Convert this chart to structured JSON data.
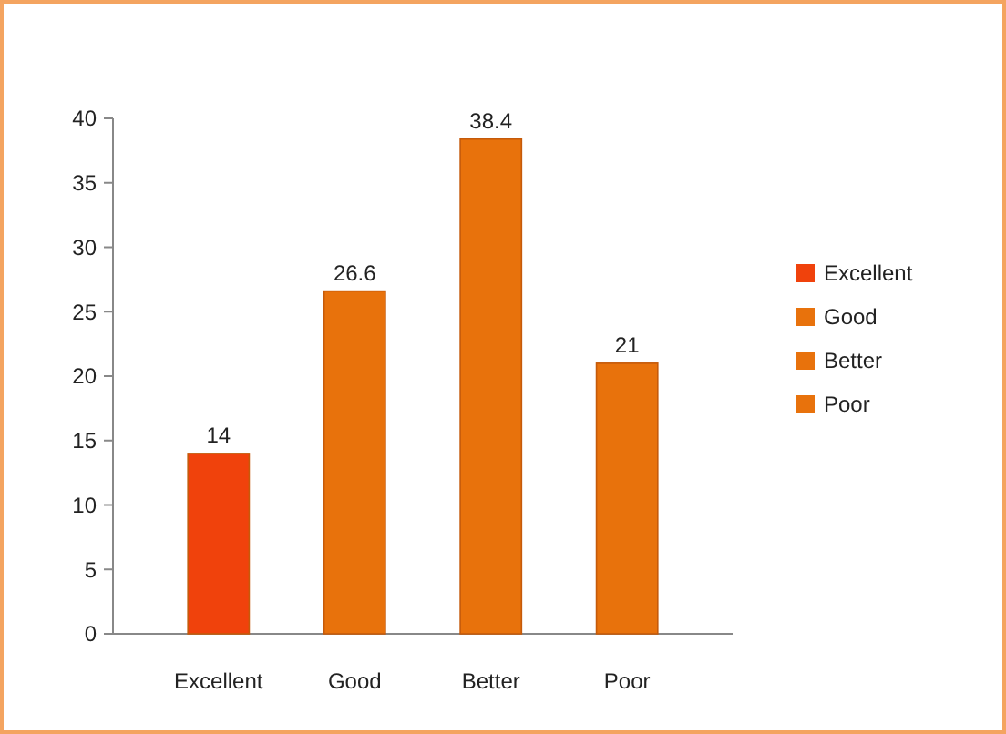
{
  "chart_data": {
    "type": "bar",
    "categories": [
      "Excellent",
      "Good",
      "Better",
      "Poor"
    ],
    "series": [
      {
        "name": "Excellent",
        "color": "#f0420c",
        "values": [
          14,
          null,
          null,
          null
        ]
      },
      {
        "name": "Good",
        "color": "#e8720c",
        "values": [
          null,
          26.6,
          null,
          null
        ]
      },
      {
        "name": "Better",
        "color": "#e8720c",
        "values": [
          null,
          null,
          38.4,
          null
        ]
      },
      {
        "name": "Poor",
        "color": "#e8720c",
        "values": [
          null,
          null,
          null,
          21
        ]
      }
    ],
    "ylim": [
      0,
      40
    ],
    "yticks": [
      0,
      5,
      10,
      15,
      20,
      25,
      30,
      35,
      40
    ],
    "data_labels": true,
    "legend": "right",
    "grid": false
  }
}
